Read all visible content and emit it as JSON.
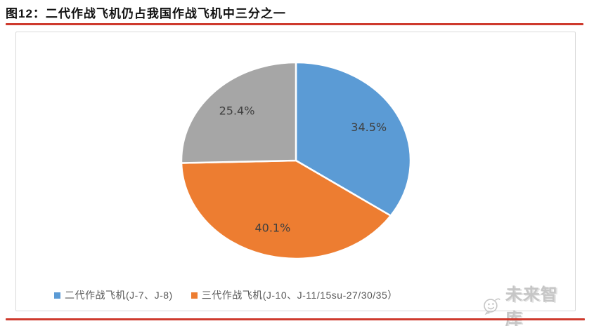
{
  "figure": {
    "title": "图12：二代作战飞机仍占我国作战飞机中三分之一",
    "accent_color": "#ce3a2d"
  },
  "chart_data": {
    "type": "pie",
    "title": "图12：二代作战飞机仍占我国作战飞机中三分之一",
    "slices": [
      {
        "label": "二代作战飞机(J-7、J-8)",
        "value": 34.5,
        "display": "34.5%",
        "color": "#5b9bd5"
      },
      {
        "label": "三代作战飞机(J-10、J-11/15su-27/30/35）",
        "value": 40.1,
        "display": "40.1%",
        "color": "#ed7d31"
      },
      {
        "label": "",
        "value": 25.4,
        "display": "25.4%",
        "color": "#a6a6a6"
      }
    ],
    "start_angle_deg": 0,
    "direction": "clockwise",
    "slice_border_color": "#ffffff",
    "label_color": "#3f3f3f",
    "legend_position": "bottom"
  },
  "legend": {
    "items": [
      {
        "label": "二代作战飞机(J-7、J-8)",
        "color": "#5b9bd5"
      },
      {
        "label": "三代作战飞机(J-10、J-11/15su-27/30/35）",
        "color": "#ed7d31"
      }
    ]
  },
  "watermark": {
    "icon": "smiley-logo-icon",
    "text": "未来智库"
  }
}
